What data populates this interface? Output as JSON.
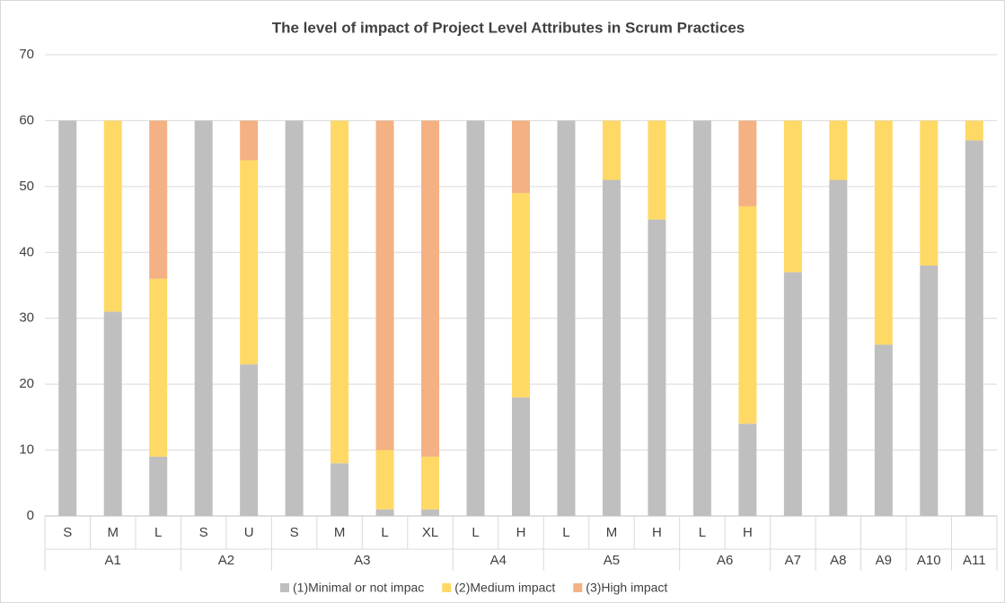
{
  "chart_data": {
    "type": "stacked_bar",
    "title": "The level of impact of Project Level Attributes in Scrum Practices",
    "groups": [
      {
        "name": "A1",
        "categories": [
          "S",
          "M",
          "L"
        ]
      },
      {
        "name": "A2",
        "categories": [
          "S",
          "U"
        ]
      },
      {
        "name": "A3",
        "categories": [
          "S",
          "M",
          "L",
          "XL"
        ]
      },
      {
        "name": "A4",
        "categories": [
          "L",
          "H"
        ]
      },
      {
        "name": "A5",
        "categories": [
          "L",
          "M",
          "H"
        ]
      },
      {
        "name": "A6",
        "categories": [
          "L",
          "H"
        ]
      },
      {
        "name": "A7",
        "categories": [
          null
        ]
      },
      {
        "name": "A8",
        "categories": [
          null
        ]
      },
      {
        "name": "A9",
        "categories": [
          null
        ]
      },
      {
        "name": "A10",
        "categories": [
          null
        ]
      },
      {
        "name": "A11",
        "categories": [
          null
        ]
      }
    ],
    "series": [
      {
        "name": "(1)Minimal or not impac",
        "color": "#bfbfbf",
        "values": [
          60,
          31,
          9,
          60,
          23,
          60,
          8,
          1,
          1,
          60,
          18,
          60,
          51,
          45,
          60,
          14,
          37,
          51,
          26,
          38,
          57
        ]
      },
      {
        "name": "(2)Medium impact",
        "color": "#ffd966",
        "values": [
          0,
          29,
          27,
          0,
          31,
          0,
          52,
          9,
          8,
          0,
          31,
          0,
          9,
          15,
          0,
          33,
          23,
          9,
          34,
          22,
          3
        ]
      },
      {
        "name": "(3)High impact",
        "color": "#f4b183",
        "values": [
          0,
          0,
          24,
          0,
          6,
          0,
          0,
          50,
          51,
          0,
          11,
          0,
          0,
          0,
          0,
          13,
          0,
          0,
          0,
          0,
          0
        ]
      }
    ],
    "ylim": [
      0,
      70
    ],
    "yticks": [
      0,
      10,
      20,
      30,
      40,
      50,
      60,
      70
    ],
    "grid": true,
    "legend": "bottom"
  }
}
